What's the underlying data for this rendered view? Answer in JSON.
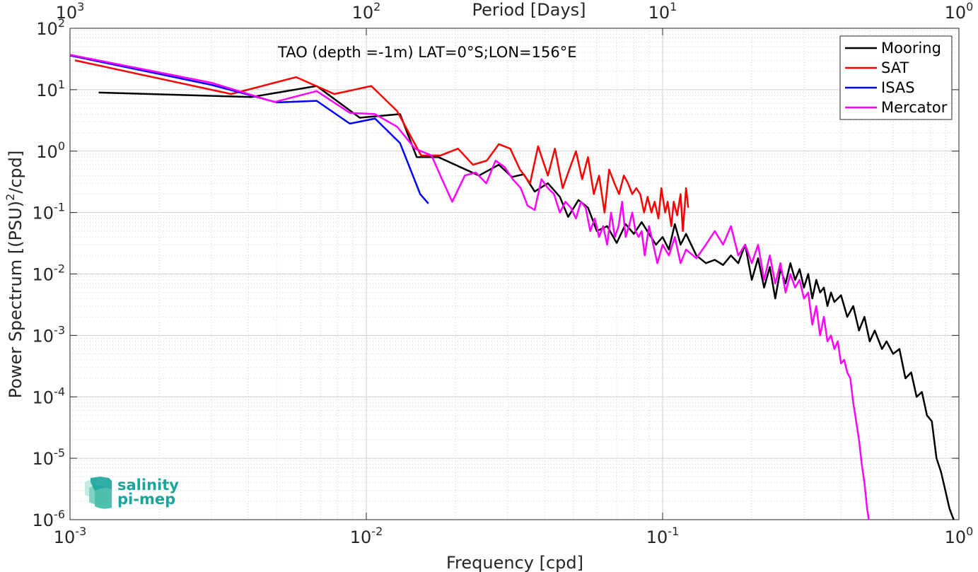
{
  "chart_data": {
    "type": "line",
    "title": "",
    "annotation": "TAO (depth =-1m) LAT=0°S;LON=156°E",
    "xlabel": "Frequency [cpd]",
    "ylabel_prefix": "Power Spectrum [(PSU)",
    "ylabel_sup": "2",
    "ylabel_suffix": "/cpd]",
    "top_xlabel": "Period [Days]",
    "xscale": "log",
    "yscale": "log",
    "xlim": [
      0.001,
      1
    ],
    "ylim": [
      1e-06,
      100
    ],
    "grid": true,
    "legend_position": "top-right",
    "x_ticks": [
      {
        "value": 0.001,
        "base": "10",
        "exp": "-3"
      },
      {
        "value": 0.01,
        "base": "10",
        "exp": "-2"
      },
      {
        "value": 0.1,
        "base": "10",
        "exp": "-1"
      },
      {
        "value": 1,
        "base": "10",
        "exp": "0"
      }
    ],
    "top_ticks": [
      {
        "value": 0.001,
        "base": "10",
        "exp": "3"
      },
      {
        "value": 0.01,
        "base": "10",
        "exp": "2"
      },
      {
        "value": 0.1,
        "base": "10",
        "exp": "1"
      },
      {
        "value": 1,
        "base": "10",
        "exp": "0"
      }
    ],
    "y_ticks": [
      {
        "value": 100,
        "base": "10",
        "exp": "2"
      },
      {
        "value": 10,
        "base": "10",
        "exp": "1"
      },
      {
        "value": 1,
        "base": "10",
        "exp": "0"
      },
      {
        "value": 0.1,
        "base": "10",
        "exp": "-1"
      },
      {
        "value": 0.01,
        "base": "10",
        "exp": "-2"
      },
      {
        "value": 0.001,
        "base": "10",
        "exp": "-3"
      },
      {
        "value": 0.0001,
        "base": "10",
        "exp": "-4"
      },
      {
        "value": 1e-05,
        "base": "10",
        "exp": "-5"
      },
      {
        "value": 1e-06,
        "base": "10",
        "exp": "-6"
      }
    ],
    "series": [
      {
        "name": "Mooring",
        "color": "#000000",
        "points": [
          [
            0.00125,
            9.0
          ],
          [
            0.0041,
            7.6
          ],
          [
            0.0068,
            11.5
          ],
          [
            0.0095,
            3.5
          ],
          [
            0.013,
            4.0
          ],
          [
            0.0148,
            0.8
          ],
          [
            0.0175,
            0.8
          ],
          [
            0.024,
            0.4
          ],
          [
            0.028,
            0.6
          ],
          [
            0.031,
            0.38
          ],
          [
            0.034,
            0.42
          ],
          [
            0.037,
            0.22
          ],
          [
            0.041,
            0.3
          ],
          [
            0.045,
            0.18
          ],
          [
            0.048,
            0.085
          ],
          [
            0.052,
            0.16
          ],
          [
            0.056,
            0.12
          ],
          [
            0.06,
            0.05
          ],
          [
            0.065,
            0.06
          ],
          [
            0.07,
            0.032
          ],
          [
            0.075,
            0.065
          ],
          [
            0.08,
            0.045
          ],
          [
            0.085,
            0.07
          ],
          [
            0.09,
            0.045
          ],
          [
            0.095,
            0.03
          ],
          [
            0.1,
            0.04
          ],
          [
            0.105,
            0.025
          ],
          [
            0.11,
            0.065
          ],
          [
            0.115,
            0.03
          ],
          [
            0.12,
            0.045
          ],
          [
            0.13,
            0.02
          ],
          [
            0.14,
            0.015
          ],
          [
            0.15,
            0.017
          ],
          [
            0.16,
            0.014
          ],
          [
            0.17,
            0.02
          ],
          [
            0.18,
            0.015
          ],
          [
            0.19,
            0.03
          ],
          [
            0.2,
            0.008
          ],
          [
            0.21,
            0.018
          ],
          [
            0.22,
            0.006
          ],
          [
            0.23,
            0.013
          ],
          [
            0.24,
            0.004
          ],
          [
            0.25,
            0.012
          ],
          [
            0.26,
            0.007
          ],
          [
            0.27,
            0.015
          ],
          [
            0.28,
            0.008
          ],
          [
            0.29,
            0.012
          ],
          [
            0.3,
            0.006
          ],
          [
            0.31,
            0.01
          ],
          [
            0.32,
            0.004
          ],
          [
            0.33,
            0.008
          ],
          [
            0.34,
            0.005
          ],
          [
            0.35,
            0.006
          ],
          [
            0.36,
            0.003
          ],
          [
            0.37,
            0.005
          ],
          [
            0.38,
            0.0035
          ],
          [
            0.4,
            0.0045
          ],
          [
            0.42,
            0.002
          ],
          [
            0.44,
            0.003
          ],
          [
            0.46,
            0.0012
          ],
          [
            0.48,
            0.002
          ],
          [
            0.5,
            0.0008
          ],
          [
            0.52,
            0.0012
          ],
          [
            0.55,
            0.0006
          ],
          [
            0.57,
            0.0008
          ],
          [
            0.6,
            0.0005
          ],
          [
            0.63,
            0.0006
          ],
          [
            0.66,
            0.0002
          ],
          [
            0.69,
            0.00025
          ],
          [
            0.72,
            0.0001
          ],
          [
            0.75,
            0.00012
          ],
          [
            0.78,
            5e-05
          ],
          [
            0.81,
            4e-05
          ],
          [
            0.84,
            1e-05
          ],
          [
            0.87,
            6e-06
          ],
          [
            0.9,
            3e-06
          ],
          [
            0.93,
            1.5e-06
          ],
          [
            0.96,
            1e-06
          ],
          [
            0.99,
            8e-07
          ]
        ]
      },
      {
        "name": "SAT",
        "color": "#ff0000",
        "points": [
          [
            0.00104,
            30
          ],
          [
            0.0035,
            8.5
          ],
          [
            0.0058,
            16
          ],
          [
            0.0078,
            8.5
          ],
          [
            0.0104,
            11.5
          ],
          [
            0.0127,
            4.5
          ],
          [
            0.0153,
            0.85
          ],
          [
            0.0178,
            0.85
          ],
          [
            0.0204,
            1.1
          ],
          [
            0.0229,
            0.6
          ],
          [
            0.0255,
            0.7
          ],
          [
            0.028,
            1.3
          ],
          [
            0.0306,
            1.1
          ],
          [
            0.033,
            0.5
          ],
          [
            0.0357,
            0.3
          ],
          [
            0.038,
            1.2
          ],
          [
            0.041,
            0.4
          ],
          [
            0.0433,
            1.1
          ],
          [
            0.046,
            0.25
          ],
          [
            0.0484,
            0.5
          ],
          [
            0.051,
            1.0
          ],
          [
            0.0535,
            0.35
          ],
          [
            0.056,
            0.8
          ],
          [
            0.0586,
            0.2
          ],
          [
            0.061,
            0.4
          ],
          [
            0.0637,
            0.1
          ],
          [
            0.066,
            0.5
          ],
          [
            0.0688,
            0.3
          ],
          [
            0.0713,
            0.2
          ],
          [
            0.074,
            0.4
          ],
          [
            0.0764,
            0.3
          ],
          [
            0.079,
            0.2
          ],
          [
            0.0815,
            0.25
          ],
          [
            0.084,
            0.2
          ],
          [
            0.0866,
            0.1
          ],
          [
            0.089,
            0.18
          ],
          [
            0.0917,
            0.1
          ],
          [
            0.094,
            0.15
          ],
          [
            0.0968,
            0.08
          ],
          [
            0.099,
            0.25
          ],
          [
            0.102,
            0.1
          ],
          [
            0.104,
            0.15
          ],
          [
            0.107,
            0.06
          ],
          [
            0.109,
            0.15
          ],
          [
            0.112,
            0.09
          ],
          [
            0.115,
            0.2
          ],
          [
            0.117,
            0.05
          ],
          [
            0.12,
            0.25
          ],
          [
            0.122,
            0.12
          ]
        ]
      },
      {
        "name": "ISAS",
        "color": "#0000ff",
        "points": [
          [
            0.001,
            36
          ],
          [
            0.003,
            12
          ],
          [
            0.005,
            6.2
          ],
          [
            0.0068,
            6.6
          ],
          [
            0.0088,
            2.8
          ],
          [
            0.0107,
            3.4
          ],
          [
            0.013,
            1.35
          ],
          [
            0.0152,
            0.2
          ],
          [
            0.0162,
            0.14
          ]
        ]
      },
      {
        "name": "Mercator",
        "color": "#ff00ff",
        "points": [
          [
            0.001,
            37
          ],
          [
            0.003,
            13
          ],
          [
            0.0049,
            6.3
          ],
          [
            0.0068,
            9.5
          ],
          [
            0.0088,
            4.2
          ],
          [
            0.0107,
            4.0
          ],
          [
            0.0127,
            2.5
          ],
          [
            0.0146,
            1.1
          ],
          [
            0.0166,
            0.85
          ],
          [
            0.018,
            0.35
          ],
          [
            0.0195,
            0.15
          ],
          [
            0.0215,
            0.4
          ],
          [
            0.0234,
            0.45
          ],
          [
            0.0254,
            0.3
          ],
          [
            0.0273,
            0.7
          ],
          [
            0.0293,
            0.55
          ],
          [
            0.0312,
            0.35
          ],
          [
            0.0332,
            0.25
          ],
          [
            0.035,
            0.13
          ],
          [
            0.037,
            0.11
          ],
          [
            0.039,
            0.35
          ],
          [
            0.041,
            0.25
          ],
          [
            0.043,
            0.2
          ],
          [
            0.045,
            0.1
          ],
          [
            0.047,
            0.15
          ],
          [
            0.049,
            0.12
          ],
          [
            0.051,
            0.08
          ],
          [
            0.053,
            0.15
          ],
          [
            0.055,
            0.12
          ],
          [
            0.057,
            0.05
          ],
          [
            0.059,
            0.08
          ],
          [
            0.061,
            0.04
          ],
          [
            0.063,
            0.06
          ],
          [
            0.065,
            0.03
          ],
          [
            0.067,
            0.1
          ],
          [
            0.069,
            0.04
          ],
          [
            0.071,
            0.06
          ],
          [
            0.073,
            0.15
          ],
          [
            0.075,
            0.04
          ],
          [
            0.077,
            0.06
          ],
          [
            0.079,
            0.1
          ],
          [
            0.081,
            0.05
          ],
          [
            0.083,
            0.04
          ],
          [
            0.085,
            0.05
          ],
          [
            0.087,
            0.02
          ],
          [
            0.09,
            0.06
          ],
          [
            0.093,
            0.03
          ],
          [
            0.096,
            0.015
          ],
          [
            0.1,
            0.03
          ],
          [
            0.105,
            0.02
          ],
          [
            0.11,
            0.04
          ],
          [
            0.115,
            0.015
          ],
          [
            0.12,
            0.025
          ],
          [
            0.13,
            0.018
          ],
          [
            0.14,
            0.03
          ],
          [
            0.15,
            0.05
          ],
          [
            0.16,
            0.03
          ],
          [
            0.17,
            0.06
          ],
          [
            0.18,
            0.02
          ],
          [
            0.19,
            0.03
          ],
          [
            0.2,
            0.015
          ],
          [
            0.21,
            0.03
          ],
          [
            0.22,
            0.008
          ],
          [
            0.23,
            0.02
          ],
          [
            0.24,
            0.007
          ],
          [
            0.25,
            0.015
          ],
          [
            0.26,
            0.005
          ],
          [
            0.27,
            0.01
          ],
          [
            0.28,
            0.006
          ],
          [
            0.29,
            0.008
          ],
          [
            0.3,
            0.004
          ],
          [
            0.31,
            0.005
          ],
          [
            0.32,
            0.0015
          ],
          [
            0.33,
            0.003
          ],
          [
            0.34,
            0.001
          ],
          [
            0.35,
            0.002
          ],
          [
            0.36,
            0.0008
          ],
          [
            0.37,
            0.001
          ],
          [
            0.38,
            0.0006
          ],
          [
            0.39,
            0.0008
          ],
          [
            0.4,
            0.00035
          ],
          [
            0.41,
            0.0004
          ],
          [
            0.42,
            0.00025
          ],
          [
            0.43,
            0.0002
          ],
          [
            0.44,
            8e-05
          ],
          [
            0.45,
            4e-05
          ],
          [
            0.46,
            2e-05
          ],
          [
            0.47,
            8e-06
          ],
          [
            0.48,
            4e-06
          ],
          [
            0.49,
            1.5e-06
          ],
          [
            0.5,
            8e-07
          ]
        ]
      }
    ],
    "legend": [
      "Mooring",
      "SAT",
      "ISAS",
      "Mercator"
    ]
  },
  "logo": {
    "line1": "salinity",
    "line2": "pi-mep",
    "colors": [
      "#1aa59c",
      "#7fd3c4",
      "#c4eae2"
    ]
  }
}
